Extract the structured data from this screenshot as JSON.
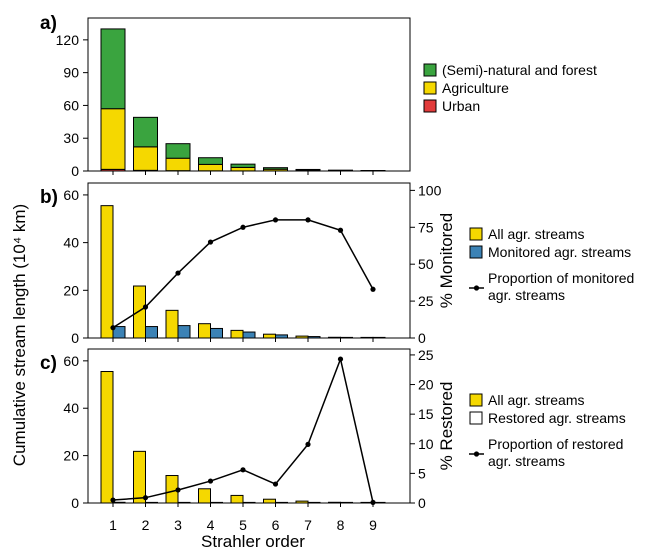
{
  "colors": {
    "forest": "#3aa43f",
    "agriculture": "#f5d800",
    "urban": "#e23b3b",
    "monitored": "#3b82b5",
    "restored": "#ffffff",
    "line": "#000000"
  },
  "figure": {
    "y_axis_title": "Cumulative stream length (10⁴ km)",
    "x_axis_title": "Strahler order"
  },
  "chart_data": [
    {
      "panel": "a)",
      "type": "bar",
      "stacked": true,
      "categories": [
        "1",
        "2",
        "3",
        "4",
        "5",
        "6",
        "7",
        "8",
        "9"
      ],
      "ylim": [
        0,
        140
      ],
      "yticks": [
        0,
        30,
        60,
        90,
        120
      ],
      "series": [
        {
          "name": "Urban",
          "color": "#e23b3b",
          "values": [
            1.5,
            0.6,
            0.3,
            0.15,
            0.08,
            0.04,
            0.02,
            0.01,
            0.0
          ]
        },
        {
          "name": "Agriculture",
          "color": "#f5d800",
          "values": [
            55.5,
            21.5,
            11.4,
            5.9,
            3.2,
            1.6,
            0.8,
            0.3,
            0.0
          ]
        },
        {
          "name": "(Semi)-natural and forest",
          "color": "#3aa43f",
          "values": [
            73,
            27,
            13.3,
            6.1,
            3.0,
            1.4,
            0.6,
            0.2,
            0.0
          ]
        }
      ],
      "legend_order": [
        "(Semi)-natural and forest",
        "Agriculture",
        "Urban"
      ],
      "grid": false,
      "legend_position": "right"
    },
    {
      "panel": "b)",
      "type": "bar+line",
      "categories": [
        "1",
        "2",
        "3",
        "4",
        "5",
        "6",
        "7",
        "8",
        "9"
      ],
      "ylim": [
        0,
        65
      ],
      "yticks": [
        0,
        20,
        40,
        60
      ],
      "y2lim": [
        0,
        105
      ],
      "y2ticks": [
        0,
        25,
        50,
        75,
        100
      ],
      "y2label": "% Monitored",
      "series": [
        {
          "name": "All agr. streams",
          "color": "#f5d800",
          "axis": "left",
          "values": [
            55.5,
            21.8,
            11.6,
            6.0,
            3.2,
            1.6,
            0.8,
            0.3,
            0.0
          ]
        },
        {
          "name": "Monitored agr. streams",
          "color": "#3b82b5",
          "axis": "left",
          "values": [
            4.8,
            4.8,
            5.2,
            4.0,
            2.5,
            1.3,
            0.6,
            0.2,
            0.0
          ]
        },
        {
          "name": "Proportion of monitored agr. streams",
          "type": "line",
          "axis": "right",
          "values": [
            7,
            21,
            44,
            65,
            75,
            80,
            80,
            73,
            33
          ]
        }
      ],
      "legend_labels": {
        "all": "All agr. streams",
        "sub": "Monitored agr. streams",
        "line_1": "Proportion of monitored",
        "line_2": "agr. streams"
      },
      "grid": false,
      "legend_position": "right"
    },
    {
      "panel": "c)",
      "type": "bar+line",
      "categories": [
        "1",
        "2",
        "3",
        "4",
        "5",
        "6",
        "7",
        "8",
        "9"
      ],
      "ylim": [
        0,
        65
      ],
      "yticks": [
        0,
        20,
        40,
        60
      ],
      "y2lim": [
        0,
        26
      ],
      "y2ticks": [
        0,
        5,
        10,
        15,
        20,
        25
      ],
      "y2label": "% Restored",
      "series": [
        {
          "name": "All agr. streams",
          "color": "#f5d800",
          "axis": "left",
          "values": [
            55.5,
            21.8,
            11.6,
            6.0,
            3.2,
            1.6,
            0.8,
            0.3,
            0.0
          ]
        },
        {
          "name": "Restored agr. streams",
          "color": "#ffffff",
          "axis": "left",
          "values": [
            0.3,
            0.2,
            0.25,
            0.22,
            0.2,
            0.06,
            0.08,
            0.07,
            0.0
          ]
        },
        {
          "name": "Proportion of restored agr. streams",
          "type": "line",
          "axis": "right",
          "values": [
            0.5,
            0.9,
            2.2,
            3.7,
            5.6,
            3.2,
            9.9,
            24.3,
            0.1
          ]
        }
      ],
      "legend_labels": {
        "all": "All agr. streams",
        "sub": "Restored agr. streams",
        "line_1": "Proportion of restored",
        "line_2": "agr. streams"
      },
      "grid": false,
      "legend_position": "right"
    }
  ]
}
